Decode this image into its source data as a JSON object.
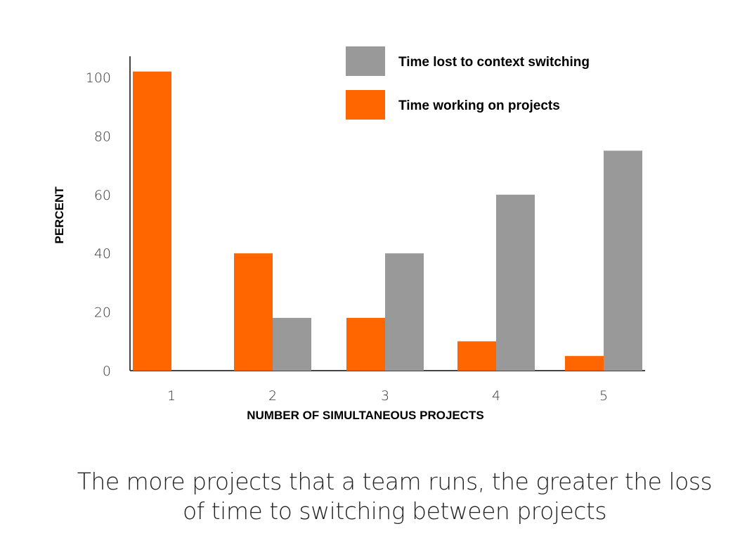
{
  "caption": {
    "line1": "The more projects that a team runs, the greater the loss",
    "line2": "of time to switching between projects"
  },
  "chart_data": {
    "type": "bar",
    "xlabel": "NUMBER OF SIMULTANEOUS PROJECTS",
    "ylabel": "PERCENT",
    "categories": [
      "1",
      "2",
      "3",
      "4",
      "5"
    ],
    "ylim": [
      0,
      100
    ],
    "yticks": [
      0,
      20,
      40,
      60,
      80,
      100
    ],
    "grid": false,
    "legend_position": "top-right",
    "series": [
      {
        "name": "Time working on projects",
        "color": "#ff6600",
        "values": [
          102,
          40,
          18,
          10,
          5
        ]
      },
      {
        "name": "Time lost to context switching",
        "color": "#999999",
        "values": [
          0,
          18,
          40,
          60,
          75
        ]
      }
    ],
    "legend_order": [
      1,
      0
    ]
  }
}
